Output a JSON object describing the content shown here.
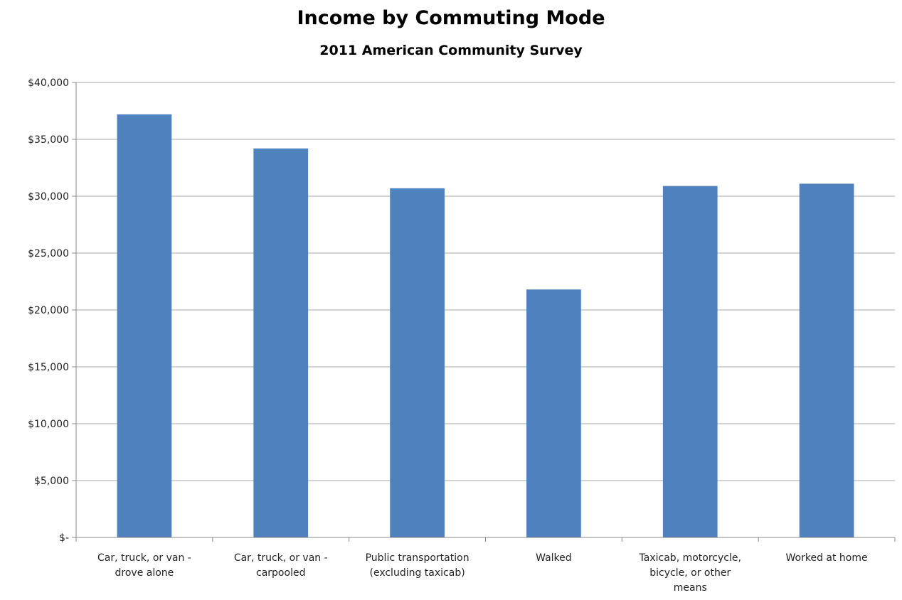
{
  "chart_data": {
    "type": "bar",
    "title": "Income by Commuting Mode",
    "subtitle": "2011 American Community Survey",
    "xlabel": "",
    "ylabel": "",
    "categories": [
      [
        "Car, truck, or van -",
        "drove alone"
      ],
      [
        "Car, truck, or van -",
        "carpooled"
      ],
      [
        "Public transportation",
        "(excluding taxicab)"
      ],
      [
        "Walked"
      ],
      [
        "Taxicab, motorcycle,",
        "bicycle, or other",
        "means"
      ],
      [
        "Worked at home"
      ]
    ],
    "values": [
      37200,
      34200,
      30700,
      21800,
      30900,
      31100
    ],
    "ylim": [
      0,
      40000
    ],
    "yticks": [
      0,
      5000,
      10000,
      15000,
      20000,
      25000,
      30000,
      35000,
      40000
    ],
    "ytick_labels": [
      "$-",
      "$5,000",
      "$10,000",
      "$15,000",
      "$20,000",
      "$25,000",
      "$30,000",
      "$35,000",
      "$40,000"
    ],
    "grid": true,
    "legend": "none",
    "bar_color": "#4f81bd",
    "grid_color": "#a6a6a6"
  }
}
